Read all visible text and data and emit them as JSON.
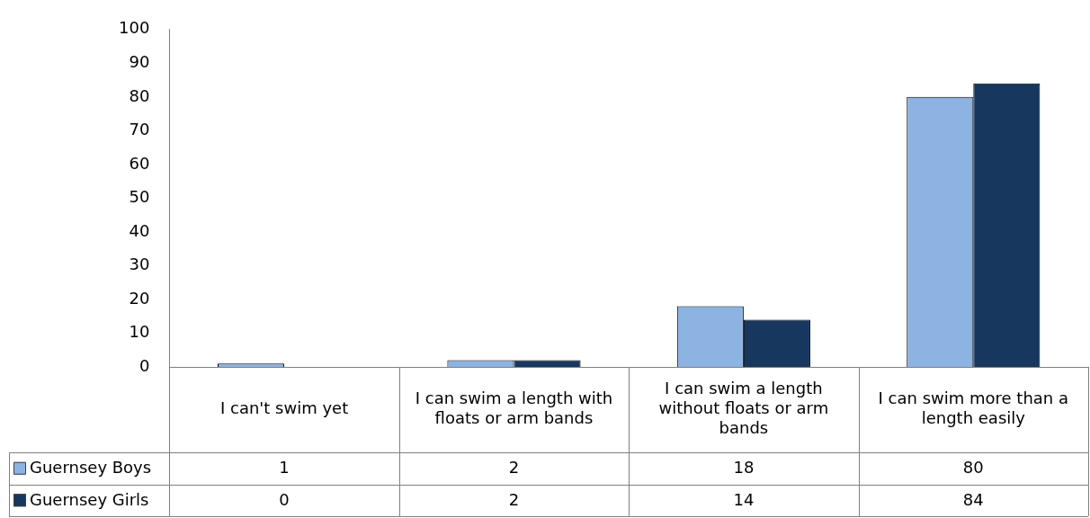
{
  "chart_data": {
    "type": "bar",
    "categories": [
      "I can't swim yet",
      "I can swim a length with floats or arm bands",
      "I can swim a length without floats or arm bands",
      "I can swim more than a length easily"
    ],
    "series": [
      {
        "name": "Guernsey Boys",
        "color": "#8db3e2",
        "values": [
          1,
          2,
          18,
          80
        ]
      },
      {
        "name": "Guernsey Girls",
        "color": "#17375e",
        "values": [
          0,
          2,
          14,
          84
        ]
      }
    ],
    "ylim": [
      0,
      100
    ],
    "yticks": [
      0,
      10,
      20,
      30,
      40,
      50,
      60,
      70,
      80,
      90,
      100
    ],
    "grid": false,
    "legend": "bottom",
    "data_labels": true
  }
}
